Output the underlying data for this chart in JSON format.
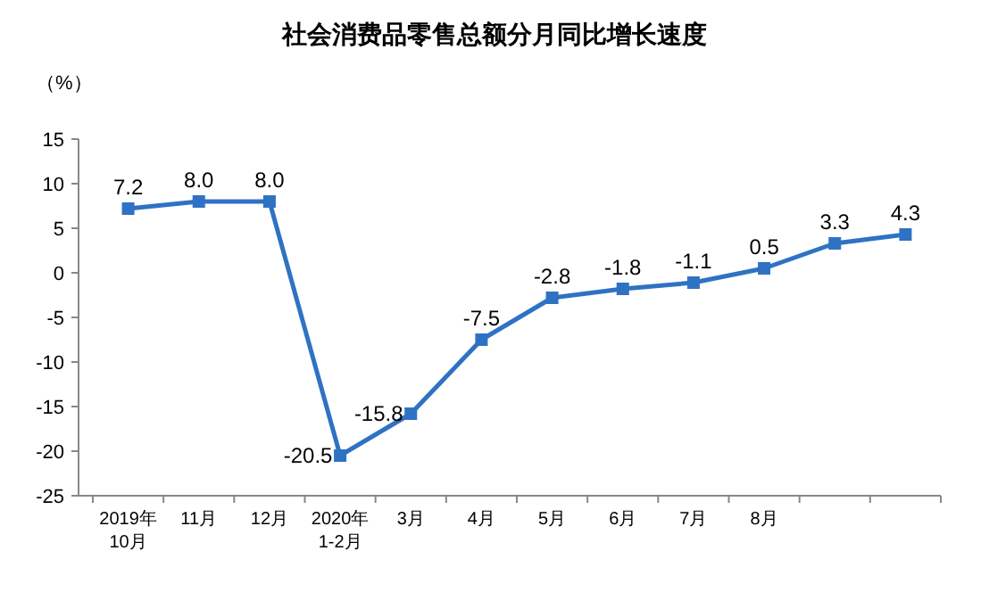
{
  "chart_data": {
    "type": "line",
    "title": "社会消费品零售总额分月同比增长速度",
    "ylabel": "（%）",
    "categories": [
      "2019年\n10月",
      "11月",
      "12月",
      "2020年\n1-2月",
      "3月",
      "4月",
      "5月",
      "6月",
      "7月",
      "8月",
      null,
      null
    ],
    "values": [
      7.2,
      8.0,
      8.0,
      -20.5,
      -15.8,
      -7.5,
      -2.8,
      -1.8,
      -1.1,
      0.5,
      3.3,
      4.3
    ],
    "value_labels": [
      "7.2",
      "8.0",
      "8.0",
      "-20.5",
      "-15.8",
      "-7.5",
      "-2.8",
      "-1.8",
      "-1.1",
      "0.5",
      "3.3",
      "4.3"
    ],
    "color": "#2f72c4",
    "ylim": [
      -25,
      15
    ],
    "yticks": [
      -25,
      -20,
      -15,
      -10,
      -5,
      0,
      5,
      10,
      15
    ],
    "marker": "square",
    "line_style": "solid",
    "grid": false
  }
}
